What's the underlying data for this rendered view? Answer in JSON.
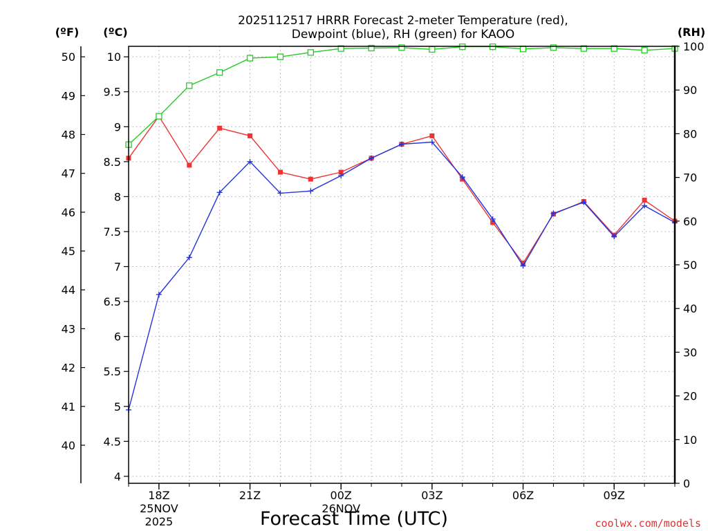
{
  "chart_data": {
    "type": "line",
    "title_line1": "2025112517 HRRR Forecast 2-meter Temperature (red),",
    "title_line2": "Dewpoint (blue), RH (green) for KAOO",
    "xlabel": "Forecast Time (UTC)",
    "credit": "coolwx.com/models",
    "left_unit_f": "(ºF)",
    "left_unit_c": "(ºC)",
    "right_unit": "(RH)",
    "x_hours": [
      0,
      1,
      2,
      3,
      4,
      5,
      6,
      7,
      8,
      9,
      10,
      11,
      12,
      13,
      14,
      15,
      16,
      17,
      18
    ],
    "x_range": [
      0,
      18
    ],
    "x_tick_hours": [
      1,
      4,
      7,
      10,
      13,
      16
    ],
    "x_ticks": [
      {
        "label": "18Z",
        "sub1": "25NOV",
        "sub2": "2025"
      },
      {
        "label": "21Z",
        "sub1": "",
        "sub2": ""
      },
      {
        "label": "00Z",
        "sub1": "26NOV",
        "sub2": ""
      },
      {
        "label": "03Z",
        "sub1": "",
        "sub2": ""
      },
      {
        "label": "06Z",
        "sub1": "",
        "sub2": ""
      },
      {
        "label": "09Z",
        "sub1": "",
        "sub2": ""
      }
    ],
    "celsius_range": [
      3.9,
      10.15
    ],
    "celsius_ticks": [
      "4",
      "4.5",
      "5",
      "5.5",
      "6",
      "6.5",
      "7",
      "7.5",
      "8",
      "8.5",
      "9",
      "9.5",
      "10"
    ],
    "fahrenheit_ticks": [
      "40",
      "41",
      "42",
      "43",
      "44",
      "45",
      "46",
      "47",
      "48",
      "49",
      "50"
    ],
    "rh_range": [
      0,
      100
    ],
    "rh_ticks": [
      "0",
      "10",
      "20",
      "30",
      "40",
      "50",
      "60",
      "70",
      "80",
      "90",
      "100"
    ],
    "colors": {
      "temperature": "#ee3333",
      "dewpoint": "#2233dd",
      "rh": "#22cc22",
      "grid": "#aaaaaa",
      "credit": "#dd3333"
    },
    "series": [
      {
        "name": "Temperature",
        "unit": "C",
        "values": [
          8.55,
          9.15,
          8.45,
          8.98,
          8.87,
          8.35,
          8.25,
          8.35,
          8.55,
          8.75,
          8.87,
          8.25,
          7.63,
          7.05,
          7.75,
          7.93,
          7.45,
          7.95,
          7.65
        ]
      },
      {
        "name": "Dewpoint",
        "unit": "C",
        "values": [
          4.95,
          6.6,
          7.13,
          8.06,
          8.5,
          8.05,
          8.08,
          8.3,
          8.55,
          8.75,
          8.78,
          8.28,
          7.68,
          7.01,
          7.76,
          7.92,
          7.43,
          7.87,
          7.63
        ]
      },
      {
        "name": "RH",
        "unit": "%",
        "values": [
          77.5,
          84,
          91,
          94,
          97.3,
          97.6,
          98.6,
          99.5,
          99.6,
          99.7,
          99.3,
          99.9,
          99.9,
          99.4,
          99.7,
          99.5,
          99.5,
          99.1,
          99.5
        ]
      }
    ]
  }
}
